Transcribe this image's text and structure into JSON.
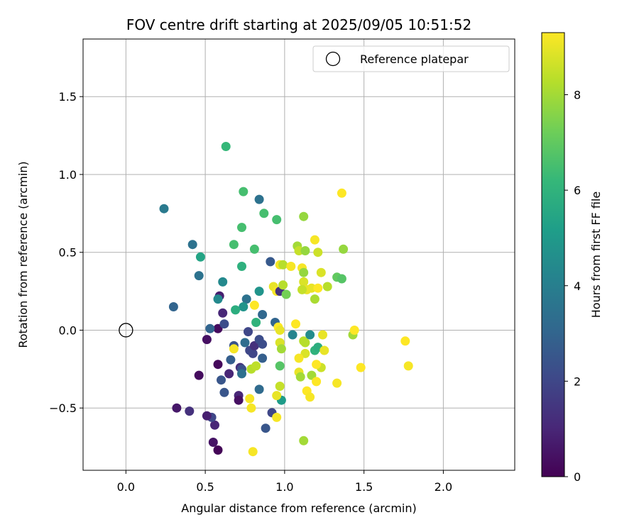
{
  "chart_data": {
    "type": "scatter",
    "title": "FOV centre drift starting at 2025/09/05 10:51:52",
    "xlabel": "Angular distance from reference (arcmin)",
    "ylabel": "Rotation from reference (arcmin)",
    "xlim": [
      -0.27,
      2.45
    ],
    "ylim": [
      -0.9,
      1.87
    ],
    "xticks": [
      0.0,
      0.5,
      1.0,
      1.5,
      2.0
    ],
    "xtick_labels": [
      "0.0",
      "0.5",
      "1.0",
      "1.5",
      "2.0"
    ],
    "yticks": [
      -0.5,
      0.0,
      0.5,
      1.0,
      1.5
    ],
    "ytick_labels": [
      "−0.5",
      "0.0",
      "0.5",
      "1.0",
      "1.5"
    ],
    "grid": true,
    "legend": {
      "position": "top-right",
      "entries": [
        "Reference platepar"
      ]
    },
    "reference_point": {
      "x": 0.0,
      "y": 0.0,
      "label": "Reference platepar"
    },
    "colorbar": {
      "label": "Hours from first FF file",
      "min": 0,
      "max": 9.3,
      "ticks": [
        0,
        2,
        4,
        6,
        8
      ],
      "tick_labels": [
        "0",
        "2",
        "4",
        "6",
        "8"
      ],
      "colormap": "viridis"
    },
    "points": [
      [
        0.58,
        -0.77,
        0.1
      ],
      [
        0.55,
        -0.72,
        0.5
      ],
      [
        0.56,
        -0.61,
        1.0
      ],
      [
        0.54,
        -0.56,
        2.0
      ],
      [
        0.51,
        -0.55,
        0.8
      ],
      [
        0.4,
        -0.52,
        1.3
      ],
      [
        0.32,
        -0.5,
        0.6
      ],
      [
        0.46,
        -0.29,
        0.3
      ],
      [
        0.58,
        -0.22,
        0.2
      ],
      [
        0.51,
        -0.06,
        0.4
      ],
      [
        0.58,
        0.01,
        0.3
      ],
      [
        0.62,
        0.04,
        2.2
      ],
      [
        0.53,
        0.01,
        3.0
      ],
      [
        0.61,
        0.11,
        1.0
      ],
      [
        0.59,
        0.22,
        0.8
      ],
      [
        0.3,
        0.15,
        3.0
      ],
      [
        0.46,
        0.35,
        3.5
      ],
      [
        0.47,
        0.47,
        5.4
      ],
      [
        0.42,
        0.55,
        3.5
      ],
      [
        0.24,
        0.78,
        3.8
      ],
      [
        0.6,
        -0.32,
        2.5
      ],
      [
        0.62,
        -0.4,
        2.5
      ],
      [
        0.65,
        -0.28,
        1.0
      ],
      [
        0.66,
        -0.19,
        2.8
      ],
      [
        0.68,
        -0.1,
        2.4
      ],
      [
        0.72,
        -0.24,
        1.3
      ],
      [
        0.73,
        -0.25,
        2.3
      ],
      [
        0.73,
        -0.28,
        3.4
      ],
      [
        0.71,
        -0.42,
        1.0
      ],
      [
        0.71,
        -0.45,
        0.4
      ],
      [
        0.75,
        -0.08,
        3.3
      ],
      [
        0.77,
        -0.01,
        2.0
      ],
      [
        0.78,
        -0.13,
        2.0
      ],
      [
        0.8,
        -0.15,
        2.0
      ],
      [
        0.81,
        -0.1,
        1.3
      ],
      [
        0.84,
        -0.06,
        2.2
      ],
      [
        0.86,
        -0.09,
        2.2
      ],
      [
        0.86,
        -0.18,
        2.8
      ],
      [
        0.84,
        -0.38,
        3.2
      ],
      [
        0.88,
        -0.63,
        2.5
      ],
      [
        0.92,
        -0.53,
        2.0
      ],
      [
        0.98,
        -0.45,
        5.1
      ],
      [
        0.97,
        -0.36,
        8.5
      ],
      [
        0.95,
        -0.42,
        9.0
      ],
      [
        0.95,
        -0.56,
        9.2
      ],
      [
        0.8,
        -0.78,
        9.2
      ],
      [
        0.79,
        -0.5,
        9.2
      ],
      [
        0.78,
        -0.44,
        9.2
      ],
      [
        0.79,
        -0.25,
        8.3
      ],
      [
        0.82,
        -0.23,
        8.4
      ],
      [
        0.68,
        -0.12,
        9.2
      ],
      [
        0.82,
        0.05,
        6.0
      ],
      [
        0.86,
        0.1,
        3.1
      ],
      [
        0.81,
        0.16,
        9.3
      ],
      [
        0.76,
        0.2,
        3.5
      ],
      [
        0.74,
        0.15,
        4.8
      ],
      [
        0.69,
        0.13,
        5.8
      ],
      [
        0.58,
        0.2,
        4.4
      ],
      [
        0.61,
        0.31,
        4.4
      ],
      [
        0.73,
        0.41,
        5.9
      ],
      [
        0.68,
        0.55,
        6.5
      ],
      [
        0.73,
        0.66,
        6.5
      ],
      [
        0.74,
        0.89,
        6.5
      ],
      [
        0.63,
        1.18,
        6.2
      ],
      [
        0.81,
        0.52,
        6.5
      ],
      [
        0.84,
        0.84,
        3.5
      ],
      [
        0.87,
        0.75,
        6.5
      ],
      [
        0.95,
        0.71,
        6.5
      ],
      [
        0.84,
        0.25,
        4.8
      ],
      [
        0.91,
        0.44,
        2.6
      ],
      [
        0.93,
        0.28,
        9.0
      ],
      [
        0.95,
        0.25,
        9.2
      ],
      [
        0.97,
        0.25,
        1.3
      ],
      [
        0.99,
        0.29,
        8.3
      ],
      [
        1.01,
        0.23,
        7.3
      ],
      [
        0.97,
        0.42,
        9.2
      ],
      [
        0.99,
        0.42,
        8.3
      ],
      [
        1.04,
        0.41,
        9.2
      ],
      [
        1.08,
        0.54,
        8.0
      ],
      [
        1.09,
        0.51,
        8.5
      ],
      [
        1.11,
        0.4,
        9.2
      ],
      [
        1.12,
        0.37,
        7.8
      ],
      [
        1.12,
        0.31,
        8.8
      ],
      [
        1.14,
        0.26,
        9.0
      ],
      [
        1.11,
        0.26,
        8.5
      ],
      [
        1.13,
        0.51,
        7.8
      ],
      [
        1.12,
        0.73,
        7.8
      ],
      [
        1.17,
        0.27,
        9.0
      ],
      [
        1.19,
        0.2,
        8.1
      ],
      [
        1.21,
        0.27,
        9.3
      ],
      [
        1.19,
        0.58,
        9.2
      ],
      [
        1.21,
        0.5,
        8.6
      ],
      [
        1.23,
        0.37,
        8.8
      ],
      [
        1.27,
        0.28,
        8.3
      ],
      [
        1.33,
        0.34,
        7.0
      ],
      [
        1.36,
        0.33,
        6.8
      ],
      [
        1.37,
        0.52,
        7.8
      ],
      [
        1.36,
        0.88,
        9.3
      ],
      [
        0.94,
        0.05,
        3.0
      ],
      [
        0.96,
        0.02,
        9.3
      ],
      [
        0.97,
        0.0,
        9.0
      ],
      [
        0.97,
        -0.08,
        8.8
      ],
      [
        0.98,
        -0.12,
        8.0
      ],
      [
        0.97,
        -0.23,
        6.8
      ],
      [
        1.05,
        -0.03,
        4.2
      ],
      [
        1.07,
        0.04,
        9.3
      ],
      [
        1.12,
        -0.07,
        8.3
      ],
      [
        1.13,
        -0.08,
        8.3
      ],
      [
        1.13,
        -0.15,
        8.8
      ],
      [
        1.16,
        -0.03,
        4.5
      ],
      [
        1.19,
        -0.13,
        6.0
      ],
      [
        1.21,
        -0.11,
        5.8
      ],
      [
        1.24,
        -0.03,
        9.0
      ],
      [
        1.25,
        -0.13,
        9.0
      ],
      [
        1.23,
        -0.24,
        8.6
      ],
      [
        1.2,
        -0.22,
        9.3
      ],
      [
        1.17,
        -0.29,
        8.0
      ],
      [
        1.09,
        -0.18,
        9.2
      ],
      [
        1.09,
        -0.27,
        9.0
      ],
      [
        1.1,
        -0.3,
        8.0
      ],
      [
        1.14,
        -0.39,
        9.3
      ],
      [
        1.16,
        -0.43,
        9.2
      ],
      [
        1.2,
        -0.33,
        9.3
      ],
      [
        1.12,
        -0.71,
        8.0
      ],
      [
        1.33,
        -0.34,
        9.2
      ],
      [
        1.43,
        -0.03,
        8.0
      ],
      [
        1.44,
        0.0,
        9.3
      ],
      [
        1.48,
        -0.24,
        9.3
      ],
      [
        1.76,
        -0.07,
        9.3
      ],
      [
        1.78,
        -0.23,
        9.2
      ]
    ]
  }
}
